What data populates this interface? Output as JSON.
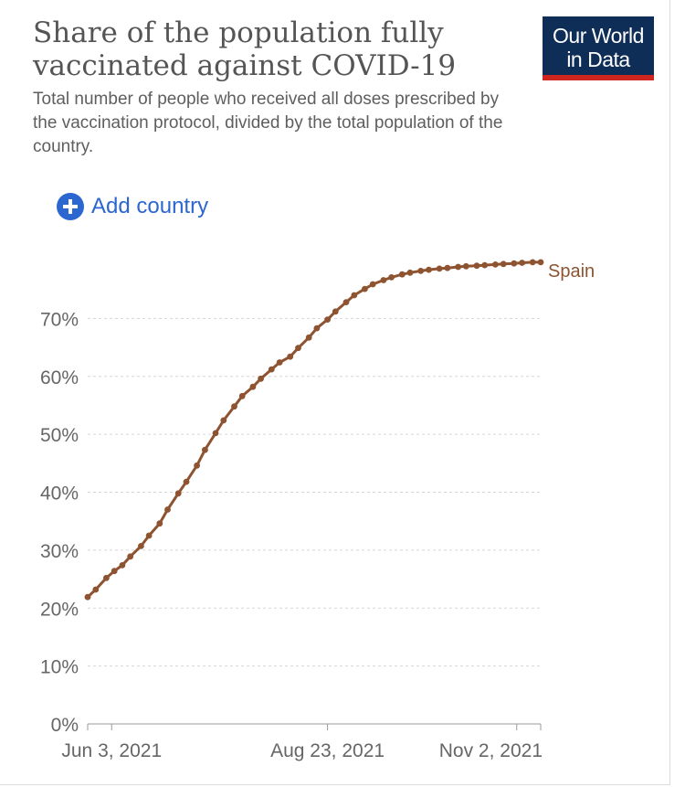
{
  "header": {
    "title": "Share of the population fully vaccinated against COVID-19",
    "subtitle": "Total number of people who received all doses prescribed by the vaccination protocol, divided by the total population of the country."
  },
  "logo": {
    "line1": "Our World",
    "line2": "in Data",
    "bg_color": "#0f2e57",
    "accent_color": "#ce261e"
  },
  "controls": {
    "add_country_label": "Add country",
    "add_icon": "plus-circle-icon",
    "accent_color": "#2b66d1"
  },
  "chart_data": {
    "type": "line",
    "title": "Share of the population fully vaccinated against COVID-19",
    "xlabel": "",
    "ylabel": "",
    "x_ticks": [
      "Jun 3, 2021",
      "Aug 23, 2021",
      "Nov 2, 2021"
    ],
    "y_ticks": [
      "0%",
      "10%",
      "20%",
      "30%",
      "40%",
      "50%",
      "60%",
      "70%"
    ],
    "ylim": [
      0,
      80
    ],
    "xlim": [
      "2021-05-25",
      "2021-11-11"
    ],
    "grid": true,
    "series": [
      {
        "name": "Spain",
        "color": "#8e5330",
        "points": [
          [
            "2021-05-25",
            21.9
          ],
          [
            "2021-05-28",
            23.2
          ],
          [
            "2021-06-01",
            25.2
          ],
          [
            "2021-06-04",
            26.4
          ],
          [
            "2021-06-07",
            27.4
          ],
          [
            "2021-06-10",
            28.9
          ],
          [
            "2021-06-14",
            30.7
          ],
          [
            "2021-06-17",
            32.5
          ],
          [
            "2021-06-21",
            34.6
          ],
          [
            "2021-06-24",
            37.0
          ],
          [
            "2021-06-28",
            39.8
          ],
          [
            "2021-07-01",
            41.8
          ],
          [
            "2021-07-05",
            44.6
          ],
          [
            "2021-07-08",
            47.3
          ],
          [
            "2021-07-12",
            50.2
          ],
          [
            "2021-07-15",
            52.4
          ],
          [
            "2021-07-19",
            54.8
          ],
          [
            "2021-07-22",
            56.6
          ],
          [
            "2021-07-26",
            58.2
          ],
          [
            "2021-07-29",
            59.6
          ],
          [
            "2021-08-02",
            61.2
          ],
          [
            "2021-08-05",
            62.4
          ],
          [
            "2021-08-09",
            63.4
          ],
          [
            "2021-08-12",
            64.9
          ],
          [
            "2021-08-16",
            66.7
          ],
          [
            "2021-08-19",
            68.3
          ],
          [
            "2021-08-23",
            69.8
          ],
          [
            "2021-08-26",
            71.2
          ],
          [
            "2021-08-30",
            72.8
          ],
          [
            "2021-09-02",
            74.0
          ],
          [
            "2021-09-06",
            75.1
          ],
          [
            "2021-09-09",
            75.9
          ],
          [
            "2021-09-13",
            76.6
          ],
          [
            "2021-09-16",
            77.1
          ],
          [
            "2021-09-20",
            77.6
          ],
          [
            "2021-09-23",
            77.9
          ],
          [
            "2021-09-27",
            78.2
          ],
          [
            "2021-09-30",
            78.4
          ],
          [
            "2021-10-04",
            78.6
          ],
          [
            "2021-10-07",
            78.7
          ],
          [
            "2021-10-11",
            78.9
          ],
          [
            "2021-10-14",
            79.0
          ],
          [
            "2021-10-18",
            79.1
          ],
          [
            "2021-10-21",
            79.2
          ],
          [
            "2021-10-25",
            79.3
          ],
          [
            "2021-10-28",
            79.4
          ],
          [
            "2021-11-01",
            79.5
          ],
          [
            "2021-11-04",
            79.6
          ],
          [
            "2021-11-08",
            79.7
          ],
          [
            "2021-11-11",
            79.7
          ]
        ]
      }
    ]
  }
}
